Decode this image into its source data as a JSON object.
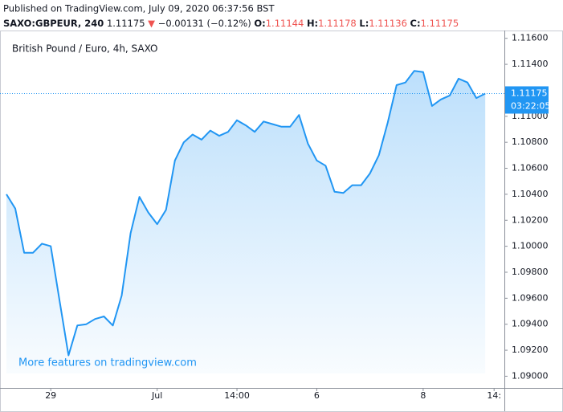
{
  "header": {
    "published": "Published on TradingView.com, July 09, 2020 06:37:56 BST",
    "symbol": "SAXO:GBPEUR, 240",
    "last": "1.11175",
    "change": "−0.00131 (−0.12%)",
    "ohlc": [
      {
        "label": "O:",
        "value": "1.11144"
      },
      {
        "label": "H:",
        "value": "1.11178"
      },
      {
        "label": "L:",
        "value": "1.11136"
      },
      {
        "label": "C:",
        "value": "1.11175"
      }
    ]
  },
  "chart_data": {
    "type": "area",
    "title": "British Pound / Euro, 4h, SAXO",
    "watermark": "More features on tradingview.com",
    "color": "#2196f3",
    "categories": [
      null,
      null,
      null,
      null,
      null,
      "29",
      null,
      null,
      null,
      null,
      null,
      null,
      null,
      null,
      null,
      null,
      null,
      "Jul",
      null,
      null,
      null,
      null,
      null,
      null,
      null,
      null,
      "14:00",
      null,
      null,
      null,
      null,
      null,
      null,
      null,
      null,
      "6",
      null,
      null,
      null,
      null,
      null,
      null,
      null,
      null,
      null,
      null,
      null,
      "8",
      null,
      null,
      null,
      null,
      null,
      null,
      null,
      "14:",
      null
    ],
    "values": [
      1.104,
      1.1029,
      1.0995,
      1.0995,
      1.1002,
      1.1,
      1.0958,
      1.0916,
      1.0939,
      1.094,
      1.0944,
      1.0946,
      1.0939,
      1.0962,
      1.101,
      1.1038,
      1.1026,
      1.1017,
      1.1028,
      1.1066,
      1.108,
      1.1086,
      1.1082,
      1.1089,
      1.1085,
      1.1088,
      1.1097,
      1.1093,
      1.1088,
      1.1096,
      1.1094,
      1.1092,
      1.1092,
      1.1101,
      1.1079,
      1.1066,
      1.1062,
      1.1042,
      1.1041,
      1.1047,
      1.1047,
      1.1056,
      1.107,
      1.1095,
      1.1124,
      1.1126,
      1.1135,
      1.1134,
      1.1108,
      1.1113,
      1.1116,
      1.1129,
      1.1126,
      1.1114,
      1.11175,
      null,
      null
    ],
    "ylim": [
      1.0891,
      1.1166
    ],
    "yticks": [
      {
        "value": 1.09,
        "label": "1.09000"
      },
      {
        "value": 1.092,
        "label": "1.09200"
      },
      {
        "value": 1.094,
        "label": "1.09400"
      },
      {
        "value": 1.096,
        "label": "1.09600"
      },
      {
        "value": 1.098,
        "label": "1.09800"
      },
      {
        "value": 1.1,
        "label": "1.10000"
      },
      {
        "value": 1.102,
        "label": "1.10200"
      },
      {
        "value": 1.104,
        "label": "1.10400"
      },
      {
        "value": 1.106,
        "label": "1.10600"
      },
      {
        "value": 1.108,
        "label": "1.10800"
      },
      {
        "value": 1.11,
        "label": "1.11000"
      },
      {
        "value": 1.112,
        "label": "1.11200"
      },
      {
        "value": 1.114,
        "label": "1.11400"
      },
      {
        "value": 1.116,
        "label": "1.11600"
      }
    ],
    "last_price": {
      "value": 1.11175,
      "label": "1.11175"
    },
    "countdown": "03:22:05",
    "grid": false
  }
}
